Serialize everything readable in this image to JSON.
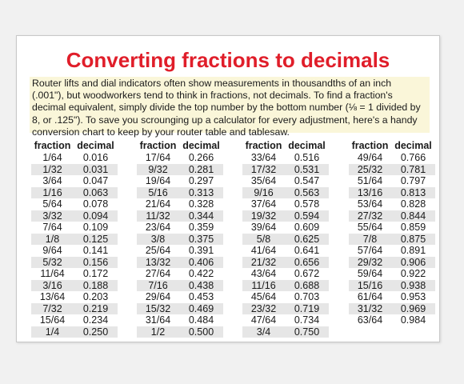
{
  "title": "Converting fractions to decimals",
  "intro": "Router lifts and dial indicators often show measurements in thousandths of an inch (.001\"), but woodworkers tend to think in fractions, not decimals. To find a fraction's decimal equivalent, simply divide the top number by the bottom number (⅛ = 1 divided by 8, or .125\"). To save you scrounging up a calculator for every adjustment, here's a handy conversion chart to keep by your router table and tablesaw.",
  "header": {
    "fraction": "fraction",
    "decimal": "decimal"
  },
  "columns": [
    [
      [
        "1/64",
        "0.016"
      ],
      [
        "1/32",
        "0.031"
      ],
      [
        "3/64",
        "0.047"
      ],
      [
        "1/16",
        "0.063"
      ],
      [
        "5/64",
        "0.078"
      ],
      [
        "3/32",
        "0.094"
      ],
      [
        "7/64",
        "0.109"
      ],
      [
        "1/8",
        "0.125"
      ],
      [
        "9/64",
        "0.141"
      ],
      [
        "5/32",
        "0.156"
      ],
      [
        "11/64",
        "0.172"
      ],
      [
        "3/16",
        "0.188"
      ],
      [
        "13/64",
        "0.203"
      ],
      [
        "7/32",
        "0.219"
      ],
      [
        "15/64",
        "0.234"
      ],
      [
        "1/4",
        "0.250"
      ]
    ],
    [
      [
        "17/64",
        "0.266"
      ],
      [
        "9/32",
        "0.281"
      ],
      [
        "19/64",
        "0.297"
      ],
      [
        "5/16",
        "0.313"
      ],
      [
        "21/64",
        "0.328"
      ],
      [
        "11/32",
        "0.344"
      ],
      [
        "23/64",
        "0.359"
      ],
      [
        "3/8",
        "0.375"
      ],
      [
        "25/64",
        "0.391"
      ],
      [
        "13/32",
        "0.406"
      ],
      [
        "27/64",
        "0.422"
      ],
      [
        "7/16",
        "0.438"
      ],
      [
        "29/64",
        "0.453"
      ],
      [
        "15/32",
        "0.469"
      ],
      [
        "31/64",
        "0.484"
      ],
      [
        "1/2",
        "0.500"
      ]
    ],
    [
      [
        "33/64",
        "0.516"
      ],
      [
        "17/32",
        "0.531"
      ],
      [
        "35/64",
        "0.547"
      ],
      [
        "9/16",
        "0.563"
      ],
      [
        "37/64",
        "0.578"
      ],
      [
        "19/32",
        "0.594"
      ],
      [
        "39/64",
        "0.609"
      ],
      [
        "5/8",
        "0.625"
      ],
      [
        "41/64",
        "0.641"
      ],
      [
        "21/32",
        "0.656"
      ],
      [
        "43/64",
        "0.672"
      ],
      [
        "11/16",
        "0.688"
      ],
      [
        "45/64",
        "0.703"
      ],
      [
        "23/32",
        "0.719"
      ],
      [
        "47/64",
        "0.734"
      ],
      [
        "3/4",
        "0.750"
      ]
    ],
    [
      [
        "49/64",
        "0.766"
      ],
      [
        "25/32",
        "0.781"
      ],
      [
        "51/64",
        "0.797"
      ],
      [
        "13/16",
        "0.813"
      ],
      [
        "53/64",
        "0.828"
      ],
      [
        "27/32",
        "0.844"
      ],
      [
        "55/64",
        "0.859"
      ],
      [
        "7/8",
        "0.875"
      ],
      [
        "57/64",
        "0.891"
      ],
      [
        "29/32",
        "0.906"
      ],
      [
        "59/64",
        "0.922"
      ],
      [
        "15/16",
        "0.938"
      ],
      [
        "61/64",
        "0.953"
      ],
      [
        "31/32",
        "0.969"
      ],
      [
        "63/64",
        "0.984"
      ]
    ]
  ]
}
